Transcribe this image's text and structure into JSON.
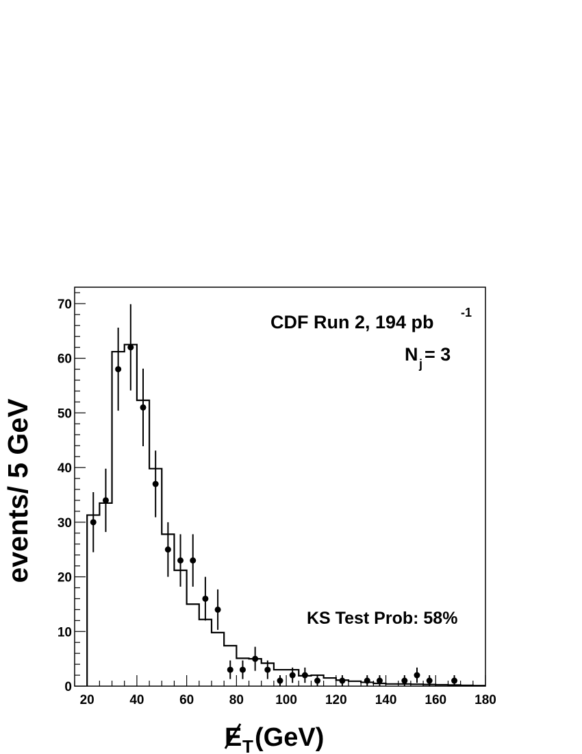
{
  "chart_data": {
    "type": "histogram",
    "xlabel_main": "E",
    "xlabel_sub": "T",
    "xlabel_unit": " (GeV)",
    "ylabel": "events/ 5 GeV",
    "xlim": [
      15,
      180
    ],
    "ylim": [
      0,
      73
    ],
    "x_ticks": [
      20,
      40,
      60,
      80,
      100,
      120,
      140,
      160,
      180
    ],
    "y_ticks": [
      0,
      10,
      20,
      30,
      40,
      50,
      60,
      70
    ],
    "annotations": {
      "experiment": "CDF Run 2, 194 pb",
      "experiment_sup": "-1",
      "njets_main": "N",
      "njets_sub": "j",
      "njets_value": " = 3",
      "ks_test": "KS Test Prob: 58%"
    },
    "histogram": {
      "name": "",
      "bin_edges": [
        20,
        25,
        30,
        35,
        40,
        45,
        50,
        55,
        60,
        65,
        70,
        75,
        80,
        85,
        90,
        95,
        100,
        105,
        110,
        115,
        120,
        125,
        130,
        135,
        140,
        145,
        150,
        155,
        160,
        165,
        170,
        175,
        180
      ],
      "values": [
        31.3,
        33.5,
        61.2,
        62.5,
        52.3,
        39.8,
        27.8,
        21.2,
        15.0,
        12.2,
        9.8,
        7.4,
        5.1,
        5.0,
        4.2,
        3.0,
        3.0,
        1.9,
        2.0,
        1.5,
        1.1,
        0.9,
        0.7,
        0.5,
        0.4,
        0.4,
        0.35,
        0.3,
        0.25,
        0.2,
        0.15,
        0.1
      ]
    },
    "data_points": {
      "name": "",
      "x": [
        22.5,
        27.5,
        32.5,
        37.5,
        42.5,
        47.5,
        52.5,
        57.5,
        62.5,
        67.5,
        72.5,
        77.5,
        82.5,
        87.5,
        92.5,
        97.5,
        102.5,
        107.5,
        112.5,
        122.5,
        132.5,
        137.5,
        147.5,
        152.5,
        157.5,
        167.5
      ],
      "y": [
        30,
        34,
        58,
        62,
        51,
        37,
        25,
        23,
        23,
        16,
        14,
        3,
        3,
        5,
        3,
        1,
        2,
        2,
        1,
        1,
        1,
        1,
        1,
        2,
        1,
        1
      ],
      "err": [
        5.5,
        5.8,
        7.6,
        7.9,
        7.1,
        6.1,
        5.0,
        4.8,
        4.8,
        4.0,
        3.7,
        1.7,
        1.7,
        2.2,
        1.7,
        1.0,
        1.4,
        1.4,
        1.0,
        1.0,
        1.0,
        1.0,
        1.0,
        1.4,
        1.0,
        1.0
      ]
    }
  }
}
